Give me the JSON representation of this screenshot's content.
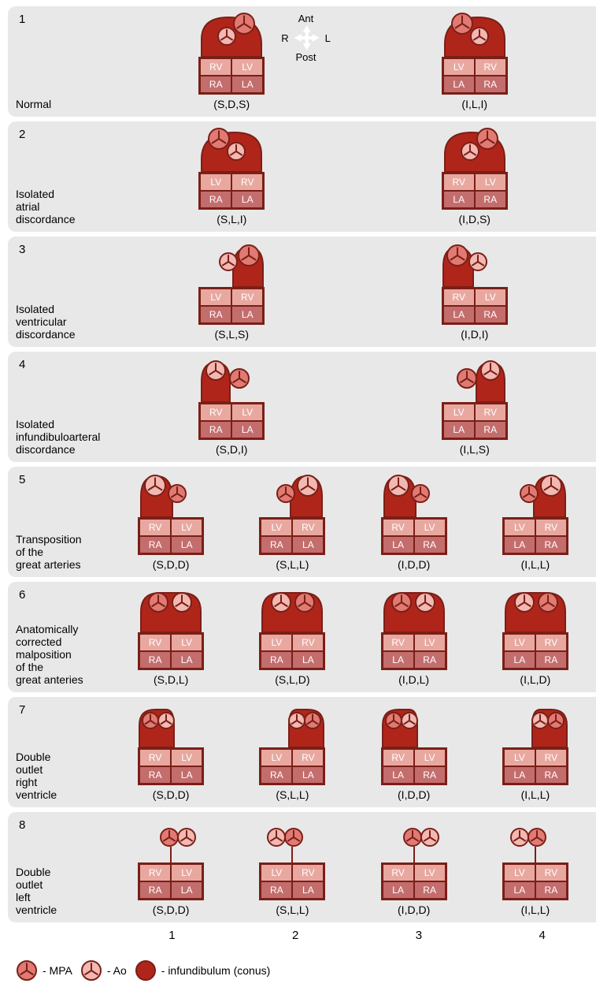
{
  "compass": {
    "ant": "Ant",
    "post": "Post",
    "r": "R",
    "l": "L"
  },
  "colors": {
    "mpa_fill": "#e07a72",
    "mpa_stroke": "#7a1f17",
    "ao_fill": "#f2b8b2",
    "ao_stroke": "#7a1f17",
    "conus_fill": "#b0251a",
    "conus_stroke": "#7a1f17",
    "vent": "#e8a8a0",
    "atr": "#c46d6d",
    "box_stroke": "#7a1f17",
    "row_bg": "#e8e8e8"
  },
  "chamber_labels": {
    "rv": "RV",
    "lv": "LV",
    "ra": "RA",
    "la": "LA"
  },
  "rows": [
    {
      "n": "1",
      "title": "Normal",
      "compass": true,
      "cells": [
        {
          "notation": "(S,D,S)",
          "v": [
            "RV",
            "LV"
          ],
          "a": [
            "RA",
            "LA"
          ],
          "top": {
            "type": "normal",
            "mirror": false
          }
        },
        {
          "notation": "(I,L,I)",
          "v": [
            "LV",
            "RV"
          ],
          "a": [
            "LA",
            "RA"
          ],
          "top": {
            "type": "normal",
            "mirror": true
          }
        }
      ]
    },
    {
      "n": "2",
      "title": "Isolated\natrial\ndiscordance",
      "cells": [
        {
          "notation": "(S,L,I)",
          "v": [
            "LV",
            "RV"
          ],
          "a": [
            "RA",
            "LA"
          ],
          "top": {
            "type": "normal",
            "mirror": true
          }
        },
        {
          "notation": "(I,D,S)",
          "v": [
            "RV",
            "LV"
          ],
          "a": [
            "LA",
            "RA"
          ],
          "top": {
            "type": "normal",
            "mirror": false
          }
        }
      ]
    },
    {
      "n": "3",
      "title": "Isolated\nventricular\ndiscordance",
      "cells": [
        {
          "notation": "(S,L,S)",
          "v": [
            "LV",
            "RV"
          ],
          "a": [
            "RA",
            "LA"
          ],
          "top": {
            "type": "iso3",
            "mirror": false
          }
        },
        {
          "notation": "(I,D,I)",
          "v": [
            "RV",
            "LV"
          ],
          "a": [
            "LA",
            "RA"
          ],
          "top": {
            "type": "iso3",
            "mirror": true
          }
        }
      ]
    },
    {
      "n": "4",
      "title": "Isolated\ninfundibuloarteral\ndiscordance",
      "cells": [
        {
          "notation": "(S,D,I)",
          "v": [
            "RV",
            "LV"
          ],
          "a": [
            "RA",
            "LA"
          ],
          "top": {
            "type": "iso4",
            "mirror": false
          }
        },
        {
          "notation": "(I,L,S)",
          "v": [
            "LV",
            "RV"
          ],
          "a": [
            "LA",
            "RA"
          ],
          "top": {
            "type": "iso4",
            "mirror": true
          }
        }
      ]
    },
    {
      "n": "5",
      "title": "Transposition\nof the\ngreat arteries",
      "cells": [
        {
          "notation": "(S,D,D)",
          "v": [
            "RV",
            "LV"
          ],
          "a": [
            "RA",
            "LA"
          ],
          "top": {
            "type": "tga",
            "mirror": false
          }
        },
        {
          "notation": "(S,L,L)",
          "v": [
            "LV",
            "RV"
          ],
          "a": [
            "RA",
            "LA"
          ],
          "top": {
            "type": "tga",
            "mirror": true
          }
        },
        {
          "notation": "(I,D,D)",
          "v": [
            "RV",
            "LV"
          ],
          "a": [
            "LA",
            "RA"
          ],
          "top": {
            "type": "tga",
            "mirror": false
          }
        },
        {
          "notation": "(I,L,L)",
          "v": [
            "LV",
            "RV"
          ],
          "a": [
            "LA",
            "RA"
          ],
          "top": {
            "type": "tga",
            "mirror": true
          }
        }
      ]
    },
    {
      "n": "6",
      "title": "Anatomically\ncorrected\nmalposition\nof the\ngreat anteries",
      "cells": [
        {
          "notation": "(S,D,L)",
          "v": [
            "RV",
            "LV"
          ],
          "a": [
            "RA",
            "LA"
          ],
          "top": {
            "type": "acm",
            "mirror": false
          }
        },
        {
          "notation": "(S,L,D)",
          "v": [
            "LV",
            "RV"
          ],
          "a": [
            "RA",
            "LA"
          ],
          "top": {
            "type": "acm",
            "mirror": true
          }
        },
        {
          "notation": "(I,D,L)",
          "v": [
            "RV",
            "LV"
          ],
          "a": [
            "LA",
            "RA"
          ],
          "top": {
            "type": "acm",
            "mirror": false
          }
        },
        {
          "notation": "(I,L,D)",
          "v": [
            "LV",
            "RV"
          ],
          "a": [
            "LA",
            "RA"
          ],
          "top": {
            "type": "acm",
            "mirror": true
          }
        }
      ]
    },
    {
      "n": "7",
      "title": "Double\noutlet\nright\nventricle",
      "cells": [
        {
          "notation": "(S,D,D)",
          "v": [
            "RV",
            "LV"
          ],
          "a": [
            "RA",
            "LA"
          ],
          "top": {
            "type": "dorv",
            "mirror": false
          }
        },
        {
          "notation": "(S,L,L)",
          "v": [
            "LV",
            "RV"
          ],
          "a": [
            "RA",
            "LA"
          ],
          "top": {
            "type": "dorv",
            "mirror": true
          }
        },
        {
          "notation": "(I,D,D)",
          "v": [
            "RV",
            "LV"
          ],
          "a": [
            "LA",
            "RA"
          ],
          "top": {
            "type": "dorv",
            "mirror": false
          }
        },
        {
          "notation": "(I,L,L)",
          "v": [
            "LV",
            "RV"
          ],
          "a": [
            "LA",
            "RA"
          ],
          "top": {
            "type": "dorv",
            "mirror": true
          }
        }
      ]
    },
    {
      "n": "8",
      "title": "Double\noutlet\nleft\nventricle",
      "cells": [
        {
          "notation": "(S,D,D)",
          "v": [
            "RV",
            "LV"
          ],
          "a": [
            "RA",
            "LA"
          ],
          "top": {
            "type": "dolv",
            "mirror": false
          }
        },
        {
          "notation": "(S,L,L)",
          "v": [
            "LV",
            "RV"
          ],
          "a": [
            "RA",
            "LA"
          ],
          "top": {
            "type": "dolv",
            "mirror": true
          }
        },
        {
          "notation": "(I,D,D)",
          "v": [
            "RV",
            "LV"
          ],
          "a": [
            "LA",
            "RA"
          ],
          "top": {
            "type": "dolv",
            "mirror": false
          }
        },
        {
          "notation": "(I,L,L)",
          "v": [
            "LV",
            "RV"
          ],
          "a": [
            "LA",
            "RA"
          ],
          "top": {
            "type": "dolv",
            "mirror": true
          }
        }
      ]
    }
  ],
  "column_numbers": [
    "1",
    "2",
    "3",
    "4"
  ],
  "legend": {
    "mpa": "- MPA",
    "ao": "- Ao",
    "conus": "- infundibulum (conus)"
  }
}
